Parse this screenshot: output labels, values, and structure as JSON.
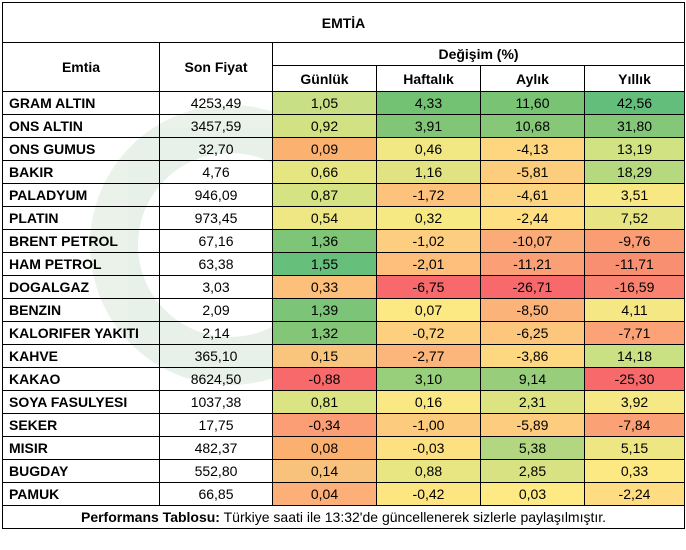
{
  "title": "EMTİA",
  "headers": {
    "commodity": "Emtia",
    "last_price": "Son Fiyat",
    "change": "Değişim (%)",
    "daily": "Günlük",
    "weekly": "Haftalık",
    "monthly": "Aylık",
    "yearly": "Yıllık"
  },
  "rows": [
    {
      "name": "GRAM ALTIN",
      "price": "4253,49",
      "daily": "1,05",
      "weekly": "4,33",
      "monthly": "11,60",
      "yearly": "42,56",
      "colors": [
        "#c9df86",
        "#73c273",
        "#79c474",
        "#63be7b"
      ]
    },
    {
      "name": "ONS ALTIN",
      "price": "3457,59",
      "daily": "0,92",
      "weekly": "3,91",
      "monthly": "10,68",
      "yearly": "31,80",
      "colors": [
        "#d2e283",
        "#80c676",
        "#86c878",
        "#84c778"
      ]
    },
    {
      "name": "ONS GUMUS",
      "price": "32,70",
      "daily": "0,09",
      "weekly": "0,46",
      "monthly": "-4,13",
      "yearly": "13,19",
      "colors": [
        "#fbb16f",
        "#f1e883",
        "#fed680",
        "#d1e283"
      ]
    },
    {
      "name": "BAKIR",
      "price": "4,76",
      "daily": "0,66",
      "weekly": "1,16",
      "monthly": "-5,81",
      "yearly": "18,29",
      "colors": [
        "#e5e582",
        "#e1e382",
        "#fdcd7e",
        "#b6d97f"
      ]
    },
    {
      "name": "PALADYUM",
      "price": "946,09",
      "daily": "0,87",
      "weekly": "-1,72",
      "monthly": "-4,61",
      "yearly": "3,51",
      "colors": [
        "#d6e383",
        "#fdc27c",
        "#fdd47f",
        "#f8e884"
      ]
    },
    {
      "name": "PLATIN",
      "price": "973,45",
      "daily": "0,54",
      "weekly": "0,32",
      "monthly": "-2,44",
      "yearly": "7,52",
      "colors": [
        "#eee783",
        "#f6e984",
        "#fee082",
        "#e6e483"
      ]
    },
    {
      "name": "BRENT PETROL",
      "price": "67,16",
      "daily": "1,36",
      "weekly": "-1,02",
      "monthly": "-10,07",
      "yearly": "-9,76",
      "colors": [
        "#7fc578",
        "#fdce7f",
        "#fbab78",
        "#fa9c74"
      ]
    },
    {
      "name": "HAM PETROL",
      "price": "63,38",
      "daily": "1,55",
      "weekly": "-2,01",
      "monthly": "-11,21",
      "yearly": "-11,71",
      "colors": [
        "#66bf7b",
        "#fdbf7b",
        "#fba076",
        "#f98f71"
      ]
    },
    {
      "name": "DOGALGAZ",
      "price": "3,03",
      "daily": "0,33",
      "weekly": "-6,75",
      "monthly": "-26,71",
      "yearly": "-16,59",
      "colors": [
        "#fcc07b",
        "#f8696b",
        "#f8696b",
        "#f98370"
      ]
    },
    {
      "name": "BENZIN",
      "price": "2,09",
      "daily": "1,39",
      "weekly": "0,07",
      "monthly": "-8,50",
      "yearly": "4,11",
      "colors": [
        "#7cc478",
        "#fde983",
        "#fcb37a",
        "#f4e784"
      ]
    },
    {
      "name": "KALORIFER YAKITI",
      "price": "2,14",
      "daily": "1,32",
      "weekly": "-0,72",
      "monthly": "-6,25",
      "yearly": "-7,71",
      "colors": [
        "#83c678",
        "#fdd07f",
        "#fcc77d",
        "#fba276"
      ]
    },
    {
      "name": "KAHVE",
      "price": "365,10",
      "daily": "0,15",
      "weekly": "-2,77",
      "monthly": "-3,86",
      "yearly": "14,18",
      "colors": [
        "#f9c57c",
        "#fcb57a",
        "#fed880",
        "#c9e083"
      ]
    },
    {
      "name": "KAKAO",
      "price": "8624,50",
      "daily": "-0,88",
      "weekly": "3,10",
      "monthly": "9,14",
      "yearly": "-25,30",
      "colors": [
        "#f8696b",
        "#98cf7a",
        "#97cd7b",
        "#f8696b"
      ]
    },
    {
      "name": "SOYA FASULYESI",
      "price": "1037,38",
      "daily": "0,81",
      "weekly": "0,16",
      "monthly": "2,31",
      "yearly": "3,92",
      "colors": [
        "#dbe483",
        "#fae884",
        "#dee382",
        "#f6e884"
      ]
    },
    {
      "name": "SEKER",
      "price": "17,75",
      "daily": "-0,34",
      "weekly": "-1,00",
      "monthly": "-5,89",
      "yearly": "-7,84",
      "colors": [
        "#fb9e75",
        "#fdcb7e",
        "#fdcc7e",
        "#fba176"
      ]
    },
    {
      "name": "MISIR",
      "price": "482,37",
      "daily": "0,08",
      "weekly": "-0,03",
      "monthly": "5,38",
      "yearly": "5,15",
      "colors": [
        "#fbb06f",
        "#fde082",
        "#b3d781",
        "#eee683"
      ]
    },
    {
      "name": "BUGDAY",
      "price": "552,80",
      "daily": "0,14",
      "weekly": "0,88",
      "monthly": "2,85",
      "yearly": "0,33",
      "colors": [
        "#f9c27c",
        "#e8e583",
        "#d9e282",
        "#fde983"
      ]
    },
    {
      "name": "PAMUK",
      "price": "66,85",
      "daily": "0,04",
      "weekly": "-0,42",
      "monthly": "0,03",
      "yearly": "-2,24",
      "colors": [
        "#fcaf78",
        "#fde582",
        "#fdea84",
        "#fedc81"
      ]
    }
  ],
  "footer": {
    "label": "Performans Tablosu:",
    "text": "Türkiye saati ile 13:32'de güncellenerek sizlerle paylaşılmıştır."
  }
}
